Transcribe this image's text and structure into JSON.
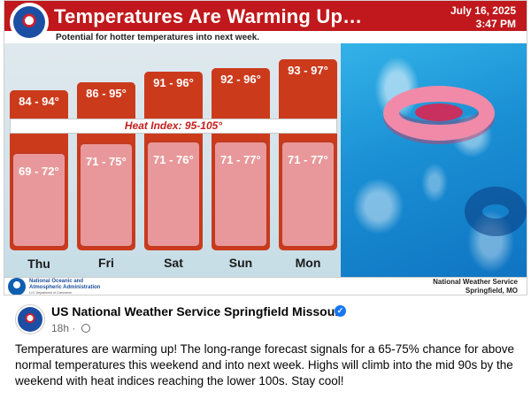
{
  "graphic": {
    "title": "Temperatures Are Warming Up…",
    "subtitle": "Potential for hotter temperatures into next week.",
    "date": "July 16, 2025",
    "time": "3:47 PM",
    "heat_index": "Heat Index: 95-105°",
    "days": [
      {
        "day": "Thu",
        "high": "84 - 94°",
        "low": "69 - 72°"
      },
      {
        "day": "Fri",
        "high": "86 - 95°",
        "low": "71 - 75°"
      },
      {
        "day": "Sat",
        "high": "91 - 96°",
        "low": "71 - 76°"
      },
      {
        "day": "Sun",
        "high": "92 - 96°",
        "low": "71 - 77°"
      },
      {
        "day": "Mon",
        "high": "93 - 97°",
        "low": "71 - 77°"
      }
    ],
    "footer": {
      "noaa_line1": "National Oceanic and",
      "noaa_line2": "Atmospheric Administration",
      "noaa_dept": "U.S. Department of Commerce",
      "nws_line1": "National Weather Service",
      "nws_line2": "Springfield, MO"
    },
    "colors": {
      "header": "#c0181c",
      "high_box": "#cc3a1c",
      "low_box": "#e8989a",
      "heat_text": "#c61e1e"
    }
  },
  "post": {
    "page_name": "US National Weather Service Springfield Missouri",
    "time_ago": "18h",
    "separator": "·",
    "text": "Temperatures are warming up! The long-range forecast signals for a 65-75% chance for above normal temperatures this weekend and into next week. Highs will climb into the mid 90s by the weekend with heat indices reaching the lower 100s. Stay cool!"
  },
  "icons": [
    "nws-logo-icon",
    "noaa-logo-icon",
    "verified-badge-icon",
    "globe-icon",
    "swim-ring-icon"
  ]
}
